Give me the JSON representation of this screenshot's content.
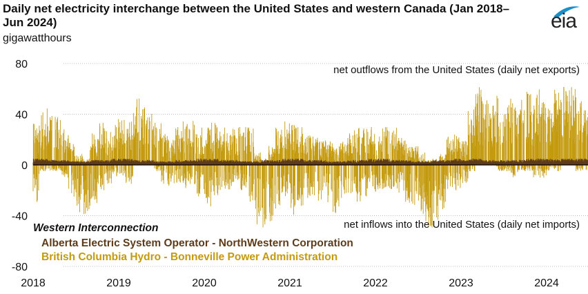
{
  "logo": "eia",
  "chart_data": {
    "type": "bar",
    "title": "Daily net electricity interchange between the United States and western Canada (Jan 2018–Jun 2024)",
    "ylabel": "gigawatthours",
    "ylim": [
      -80,
      80
    ],
    "yticks": [
      80,
      40,
      0,
      -40,
      -80
    ],
    "xticks": [
      "2018",
      "2019",
      "2020",
      "2021",
      "2022",
      "2023",
      "2024"
    ],
    "x_range": [
      "2018-01",
      "2024-06"
    ],
    "grid": true,
    "annotations": {
      "top": "net outflows from the United States (daily net exports)",
      "bottom": "net inflows into the United States (daily net imports)"
    },
    "legend_title": "Western Interconnection",
    "legend_placement": "bottom-left",
    "colors": {
      "alberta": "#5e3c1b",
      "bc": "#c49a0e"
    },
    "months": [
      "2018-01",
      "2018-02",
      "2018-03",
      "2018-04",
      "2018-05",
      "2018-06",
      "2018-07",
      "2018-08",
      "2018-09",
      "2018-10",
      "2018-11",
      "2018-12",
      "2019-01",
      "2019-02",
      "2019-03",
      "2019-04",
      "2019-05",
      "2019-06",
      "2019-07",
      "2019-08",
      "2019-09",
      "2019-10",
      "2019-11",
      "2019-12",
      "2020-01",
      "2020-02",
      "2020-03",
      "2020-04",
      "2020-05",
      "2020-06",
      "2020-07",
      "2020-08",
      "2020-09",
      "2020-10",
      "2020-11",
      "2020-12",
      "2021-01",
      "2021-02",
      "2021-03",
      "2021-04",
      "2021-05",
      "2021-06",
      "2021-07",
      "2021-08",
      "2021-09",
      "2021-10",
      "2021-11",
      "2021-12",
      "2022-01",
      "2022-02",
      "2022-03",
      "2022-04",
      "2022-05",
      "2022-06",
      "2022-07",
      "2022-08",
      "2022-09",
      "2022-10",
      "2022-11",
      "2022-12",
      "2023-01",
      "2023-02",
      "2023-03",
      "2023-04",
      "2023-05",
      "2023-06",
      "2023-07",
      "2023-08",
      "2023-09",
      "2023-10",
      "2023-11",
      "2023-12",
      "2024-01",
      "2024-02",
      "2024-03",
      "2024-04",
      "2024-05",
      "2024-06"
    ],
    "series": [
      {
        "name": "Alberta Electric System Operator - NorthWestern Corporation",
        "monthly_daily_range": [
          [
            0,
            5
          ],
          [
            0,
            5
          ],
          [
            0,
            4
          ],
          [
            0,
            4
          ],
          [
            0,
            4
          ],
          [
            0,
            3
          ],
          [
            0,
            3
          ],
          [
            0,
            3
          ],
          [
            0,
            4
          ],
          [
            0,
            4
          ],
          [
            0,
            4
          ],
          [
            0,
            5
          ],
          [
            0,
            5
          ],
          [
            0,
            5
          ],
          [
            0,
            4
          ],
          [
            0,
            4
          ],
          [
            0,
            4
          ],
          [
            0,
            3
          ],
          [
            0,
            3
          ],
          [
            0,
            3
          ],
          [
            0,
            4
          ],
          [
            0,
            4
          ],
          [
            0,
            4
          ],
          [
            0,
            5
          ],
          [
            0,
            5
          ],
          [
            0,
            5
          ],
          [
            0,
            4
          ],
          [
            0,
            4
          ],
          [
            0,
            4
          ],
          [
            0,
            3
          ],
          [
            0,
            3
          ],
          [
            0,
            3
          ],
          [
            0,
            4
          ],
          [
            0,
            4
          ],
          [
            0,
            4
          ],
          [
            0,
            5
          ],
          [
            0,
            5
          ],
          [
            0,
            5
          ],
          [
            0,
            4
          ],
          [
            0,
            4
          ],
          [
            0,
            4
          ],
          [
            0,
            3
          ],
          [
            0,
            3
          ],
          [
            0,
            3
          ],
          [
            0,
            4
          ],
          [
            0,
            4
          ],
          [
            0,
            4
          ],
          [
            0,
            5
          ],
          [
            0,
            5
          ],
          [
            0,
            5
          ],
          [
            0,
            4
          ],
          [
            0,
            4
          ],
          [
            0,
            4
          ],
          [
            0,
            3
          ],
          [
            0,
            3
          ],
          [
            0,
            3
          ],
          [
            0,
            4
          ],
          [
            0,
            4
          ],
          [
            0,
            4
          ],
          [
            0,
            5
          ],
          [
            -2,
            4
          ],
          [
            0,
            5
          ],
          [
            0,
            5
          ],
          [
            0,
            4
          ],
          [
            0,
            4
          ],
          [
            0,
            4
          ],
          [
            0,
            4
          ],
          [
            0,
            4
          ],
          [
            0,
            4
          ],
          [
            0,
            5
          ],
          [
            0,
            5
          ],
          [
            0,
            5
          ],
          [
            0,
            5
          ],
          [
            0,
            5
          ],
          [
            0,
            5
          ],
          [
            0,
            5
          ],
          [
            0,
            5
          ],
          [
            0,
            5
          ]
        ]
      },
      {
        "name": "British Columbia Hydro - Bonneville Power Administration",
        "monthly_daily_range": [
          [
            -30,
            35
          ],
          [
            -5,
            45
          ],
          [
            -5,
            40
          ],
          [
            -5,
            38
          ],
          [
            -10,
            30
          ],
          [
            -25,
            20
          ],
          [
            -40,
            10
          ],
          [
            -40,
            5
          ],
          [
            -30,
            25
          ],
          [
            -20,
            35
          ],
          [
            -15,
            30
          ],
          [
            -10,
            38
          ],
          [
            -10,
            38
          ],
          [
            -15,
            35
          ],
          [
            0,
            53
          ],
          [
            0,
            50
          ],
          [
            0,
            45
          ],
          [
            -5,
            35
          ],
          [
            -15,
            25
          ],
          [
            -20,
            20
          ],
          [
            -15,
            30
          ],
          [
            -20,
            35
          ],
          [
            -20,
            35
          ],
          [
            -25,
            30
          ],
          [
            -35,
            30
          ],
          [
            -25,
            35
          ],
          [
            -20,
            30
          ],
          [
            -20,
            25
          ],
          [
            -15,
            30
          ],
          [
            -20,
            30
          ],
          [
            -30,
            33
          ],
          [
            -50,
            10
          ],
          [
            -53,
            5
          ],
          [
            -45,
            15
          ],
          [
            -35,
            30
          ],
          [
            -25,
            35
          ],
          [
            -40,
            35
          ],
          [
            -35,
            30
          ],
          [
            -30,
            25
          ],
          [
            -25,
            25
          ],
          [
            -30,
            20
          ],
          [
            -30,
            20
          ],
          [
            -40,
            15
          ],
          [
            -35,
            20
          ],
          [
            -30,
            25
          ],
          [
            -30,
            30
          ],
          [
            -25,
            30
          ],
          [
            -20,
            30
          ],
          [
            -25,
            25
          ],
          [
            -20,
            30
          ],
          [
            -20,
            30
          ],
          [
            -25,
            25
          ],
          [
            -30,
            20
          ],
          [
            -35,
            15
          ],
          [
            -40,
            10
          ],
          [
            -50,
            5
          ],
          [
            -45,
            5
          ],
          [
            -35,
            10
          ],
          [
            -20,
            25
          ],
          [
            -20,
            25
          ],
          [
            -15,
            20
          ],
          [
            -5,
            45
          ],
          [
            0,
            62
          ],
          [
            0,
            55
          ],
          [
            0,
            55
          ],
          [
            -5,
            58
          ],
          [
            -5,
            55
          ],
          [
            -10,
            50
          ],
          [
            -5,
            55
          ],
          [
            -5,
            58
          ],
          [
            -10,
            60
          ],
          [
            -10,
            50
          ],
          [
            -5,
            45
          ],
          [
            -5,
            60
          ],
          [
            0,
            62
          ],
          [
            0,
            62
          ],
          [
            -5,
            60
          ],
          [
            -5,
            45
          ]
        ]
      }
    ]
  }
}
